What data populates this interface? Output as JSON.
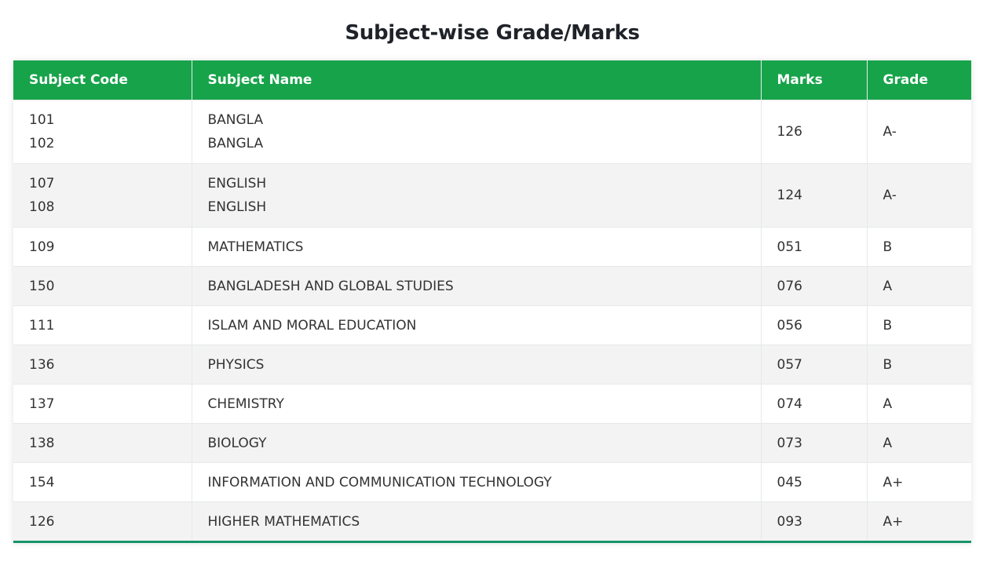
{
  "title": "Subject-wise Grade/Marks",
  "colors": {
    "header_bg": "#17a34a",
    "header_text": "#ffffff",
    "stripe": "#f3f3f3",
    "bottom_border": "#17936a"
  },
  "table": {
    "headers": [
      "Subject Code",
      "Subject Name",
      "Marks",
      "Grade"
    ],
    "rows": [
      {
        "codes": [
          "101",
          "102"
        ],
        "names": [
          "BANGLA",
          "BANGLA"
        ],
        "marks": "126",
        "grade": "A-"
      },
      {
        "codes": [
          "107",
          "108"
        ],
        "names": [
          "ENGLISH",
          "ENGLISH"
        ],
        "marks": "124",
        "grade": "A-"
      },
      {
        "codes": [
          "109"
        ],
        "names": [
          "MATHEMATICS"
        ],
        "marks": "051",
        "grade": "B"
      },
      {
        "codes": [
          "150"
        ],
        "names": [
          "BANGLADESH AND GLOBAL STUDIES"
        ],
        "marks": "076",
        "grade": "A"
      },
      {
        "codes": [
          "111"
        ],
        "names": [
          "ISLAM AND MORAL EDUCATION"
        ],
        "marks": "056",
        "grade": "B"
      },
      {
        "codes": [
          "136"
        ],
        "names": [
          "PHYSICS"
        ],
        "marks": "057",
        "grade": "B"
      },
      {
        "codes": [
          "137"
        ],
        "names": [
          "CHEMISTRY"
        ],
        "marks": "074",
        "grade": "A"
      },
      {
        "codes": [
          "138"
        ],
        "names": [
          "BIOLOGY"
        ],
        "marks": "073",
        "grade": "A"
      },
      {
        "codes": [
          "154"
        ],
        "names": [
          "INFORMATION AND COMMUNICATION TECHNOLOGY"
        ],
        "marks": "045",
        "grade": "A+"
      },
      {
        "codes": [
          "126"
        ],
        "names": [
          "HIGHER MATHEMATICS"
        ],
        "marks": "093",
        "grade": "A+"
      }
    ]
  }
}
